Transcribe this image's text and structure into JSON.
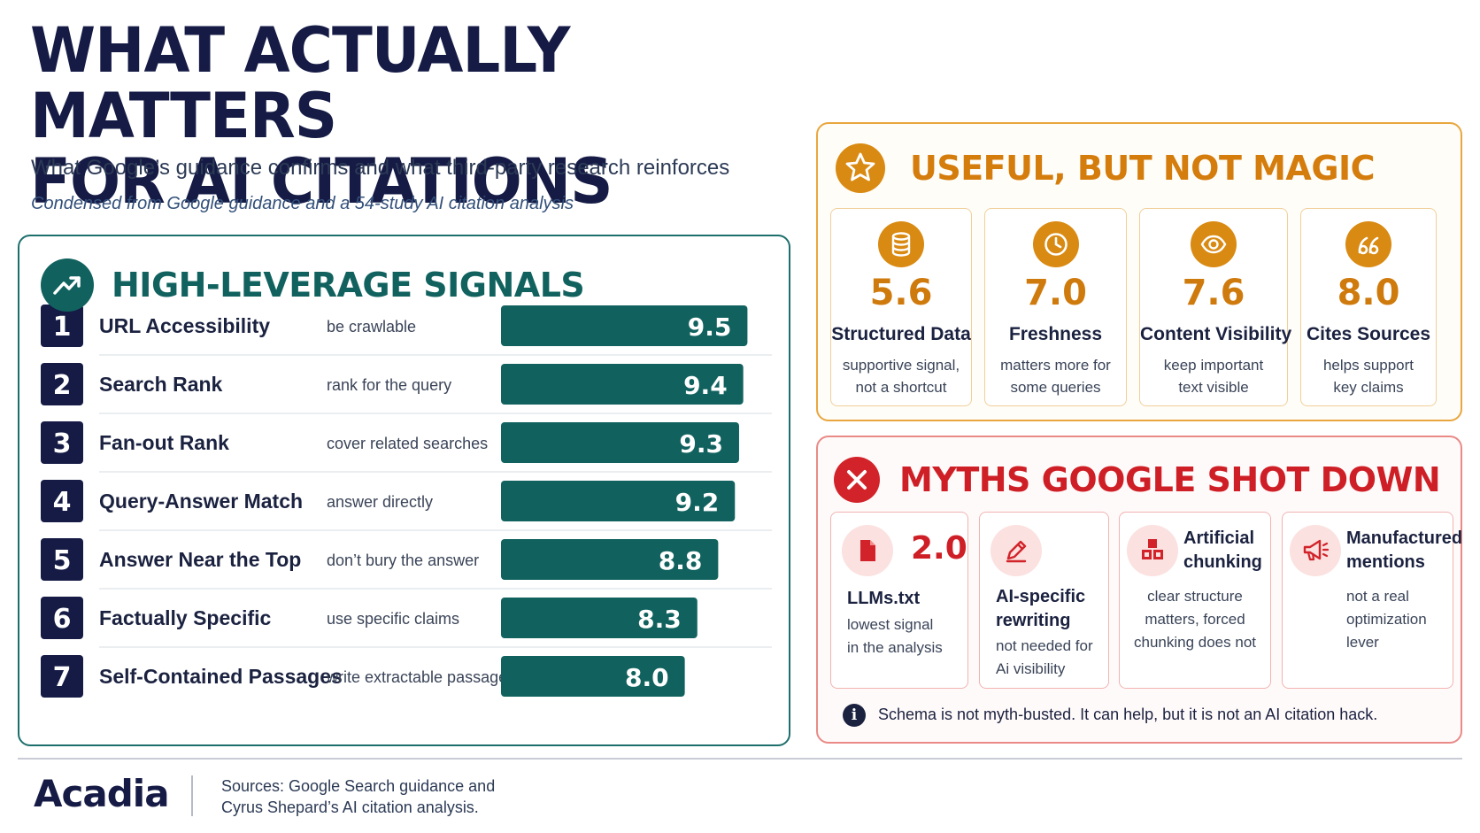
{
  "header": {
    "title_line1": "WHAT ACTUALLY MATTERS",
    "title_line2": "FOR AI CITATIONS",
    "subtitle": "What Google’s guidance confirms and what third-party research reinforces",
    "note": "Condensed from Google guidance and a 54-study AI citation analysis"
  },
  "high_leverage": {
    "title": "HIGH-LEVERAGE SIGNALS",
    "icon": "trending-up-icon"
  },
  "chart_data": {
    "type": "bar",
    "orientation": "horizontal",
    "title": "HIGH-LEVERAGE SIGNALS",
    "xlim": [
      0,
      10
    ],
    "grid": false,
    "categories": [
      "URL Accessibility",
      "Search Rank",
      "Fan-out Rank",
      "Query-Answer Match",
      "Answer Near the Top",
      "Factually Specific",
      "Self-Contained Passages"
    ],
    "ranks": [
      "1",
      "2",
      "3",
      "4",
      "5",
      "6",
      "7"
    ],
    "descriptions": [
      "be crawlable",
      "rank for the query",
      "cover related searches",
      "answer directly",
      "don’t bury the answer",
      "use specific claims",
      "write extractable passages"
    ],
    "values": [
      9.5,
      9.4,
      9.3,
      9.2,
      8.8,
      8.3,
      8.0
    ],
    "value_labels": [
      "9.5",
      "9.4",
      "9.3",
      "9.2",
      "8.8",
      "8.3",
      "8.0"
    ],
    "bar_color": "#11625f",
    "rank_badge_color": "#151b45"
  },
  "useful": {
    "title": "USEFUL, BUT NOT MAGIC",
    "icon": "star-icon",
    "accent": "#d98a12",
    "cards": [
      {
        "icon": "database-icon",
        "value": "5.6",
        "label": "Structured Data",
        "desc1": "supportive signal,",
        "desc2": "not a shortcut"
      },
      {
        "icon": "clock-icon",
        "value": "7.0",
        "label": "Freshness",
        "desc1": "matters more for",
        "desc2": "some queries"
      },
      {
        "icon": "eye-icon",
        "value": "7.6",
        "label": "Content Visibility",
        "desc1": "keep important",
        "desc2": "text visible"
      },
      {
        "icon": "quote-icon",
        "value": "8.0",
        "label": "Cites Sources",
        "desc1": "helps support",
        "desc2": "key claims"
      }
    ]
  },
  "myths": {
    "title": "MYTHS GOOGLE SHOT DOWN",
    "icon": "close-icon",
    "accent": "#d2232a",
    "cards": [
      {
        "icon": "file-icon",
        "value": "2.0",
        "label1": "LLMs.txt",
        "label2": "",
        "desc1": "lowest signal",
        "desc2": "in the analysis",
        "desc3": ""
      },
      {
        "icon": "pencil-icon",
        "value": "",
        "label1": "AI-specific",
        "label2": "rewriting",
        "desc1": "not needed for",
        "desc2": "Ai visibility",
        "desc3": ""
      },
      {
        "icon": "blocks-icon",
        "value": "",
        "label1": "Artificial",
        "label2": "chunking",
        "desc1": "clear structure",
        "desc2": "matters, forced",
        "desc3": "chunking does not"
      },
      {
        "icon": "megaphone-icon",
        "value": "",
        "label1": "Manufactured",
        "label2": "mentions",
        "desc1": "not a real",
        "desc2": "optimization",
        "desc3": "lever"
      }
    ],
    "footnote": "Schema is not myth-busted. It can help, but it is not an AI citation hack.",
    "footnote_icon": "info-icon",
    "footnote_icon_glyph": "i"
  },
  "footer": {
    "logo": "Acadia",
    "sources_line1": "Sources: Google Search guidance and",
    "sources_line2": "Cyrus Shepard’s AI citation analysis."
  }
}
